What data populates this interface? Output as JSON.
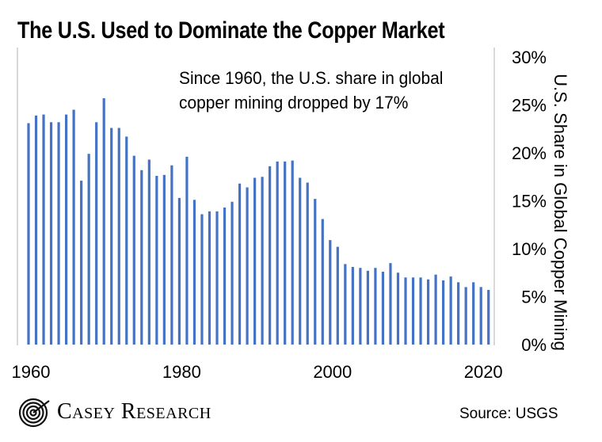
{
  "chart_data": {
    "type": "bar",
    "title": "The U.S. Used to Dominate the Copper Market",
    "annotation": [
      "Since 1960, the U.S. share in global",
      "copper mining dropped by 17%"
    ],
    "ylabel": "U.S. Share in Global Copper Mining",
    "xlabel": "",
    "ylim": [
      0,
      30
    ],
    "y_ticks": [
      "0%",
      "5%",
      "10%",
      "15%",
      "20%",
      "25%",
      "30%"
    ],
    "y_tick_values": [
      0,
      5,
      10,
      15,
      20,
      25,
      30
    ],
    "x_tick_labels": [
      "1960",
      "1980",
      "2000",
      "2020"
    ],
    "x_tick_years": [
      1960,
      1980,
      2000,
      2020
    ],
    "y_axis_position": "right",
    "grid": false,
    "bar_color": "#4472C4",
    "x": [
      1960,
      1961,
      1962,
      1963,
      1964,
      1965,
      1966,
      1967,
      1968,
      1969,
      1970,
      1971,
      1972,
      1973,
      1974,
      1975,
      1976,
      1977,
      1978,
      1979,
      1980,
      1981,
      1982,
      1983,
      1984,
      1985,
      1986,
      1987,
      1988,
      1989,
      1990,
      1991,
      1992,
      1993,
      1994,
      1995,
      1996,
      1997,
      1998,
      1999,
      2000,
      2001,
      2002,
      2003,
      2004,
      2005,
      2006,
      2007,
      2008,
      2009,
      2010,
      2011,
      2012,
      2013,
      2014,
      2015,
      2016,
      2017,
      2018,
      2019,
      2020,
      2021
    ],
    "values": [
      23.1,
      23.9,
      24.0,
      23.2,
      23.2,
      24.0,
      24.5,
      17.1,
      19.9,
      23.2,
      25.7,
      22.6,
      22.6,
      21.7,
      19.7,
      18.2,
      19.3,
      17.6,
      17.7,
      18.7,
      15.3,
      19.6,
      15.1,
      13.6,
      13.9,
      13.9,
      14.3,
      14.9,
      16.8,
      16.4,
      17.4,
      17.5,
      18.6,
      19.1,
      19.1,
      19.2,
      17.4,
      16.9,
      15.2,
      13.1,
      10.9,
      10.2,
      8.4,
      8.1,
      8.0,
      7.7,
      8.0,
      7.6,
      8.5,
      7.5,
      7.0,
      7.0,
      7.0,
      6.8,
      7.3,
      6.7,
      7.1,
      6.5,
      6.0,
      6.5,
      6.0,
      5.7
    ]
  },
  "footer": {
    "logo_text": "Casey Research",
    "source": "Source: USGS"
  }
}
